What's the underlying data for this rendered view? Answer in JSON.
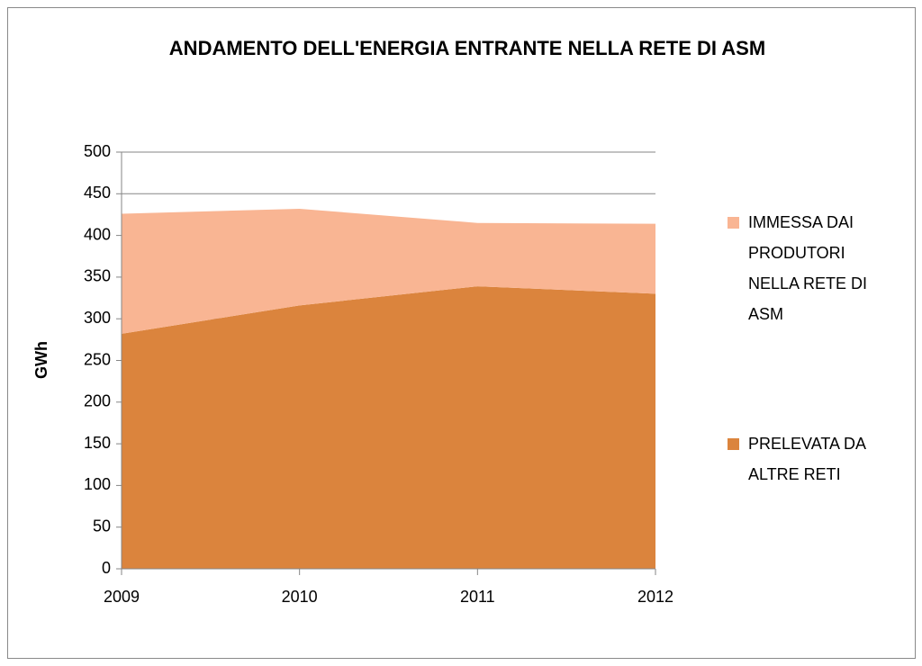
{
  "chart_data": {
    "type": "stacked_area",
    "title": "ANDAMENTO DELL'ENERGIA ENTRANTE NELLA RETE DI ASM",
    "y_label": "GWh",
    "categories": [
      "2009",
      "2010",
      "2011",
      "2012"
    ],
    "series": [
      {
        "name": "PRELEVATA DA ALTRE RETI",
        "color": "#db843d",
        "values": [
          282,
          316,
          339,
          330
        ]
      },
      {
        "name": "IMMESSA DAI PRODUTORI NELLA RETE DI ASM",
        "color": "#f9b593",
        "values": [
          144,
          116,
          76,
          84
        ]
      }
    ],
    "ylim": [
      0,
      500
    ],
    "yticks": [
      0,
      50,
      100,
      150,
      200,
      250,
      300,
      350,
      400,
      450,
      500
    ],
    "grid": true,
    "legend": "right"
  }
}
